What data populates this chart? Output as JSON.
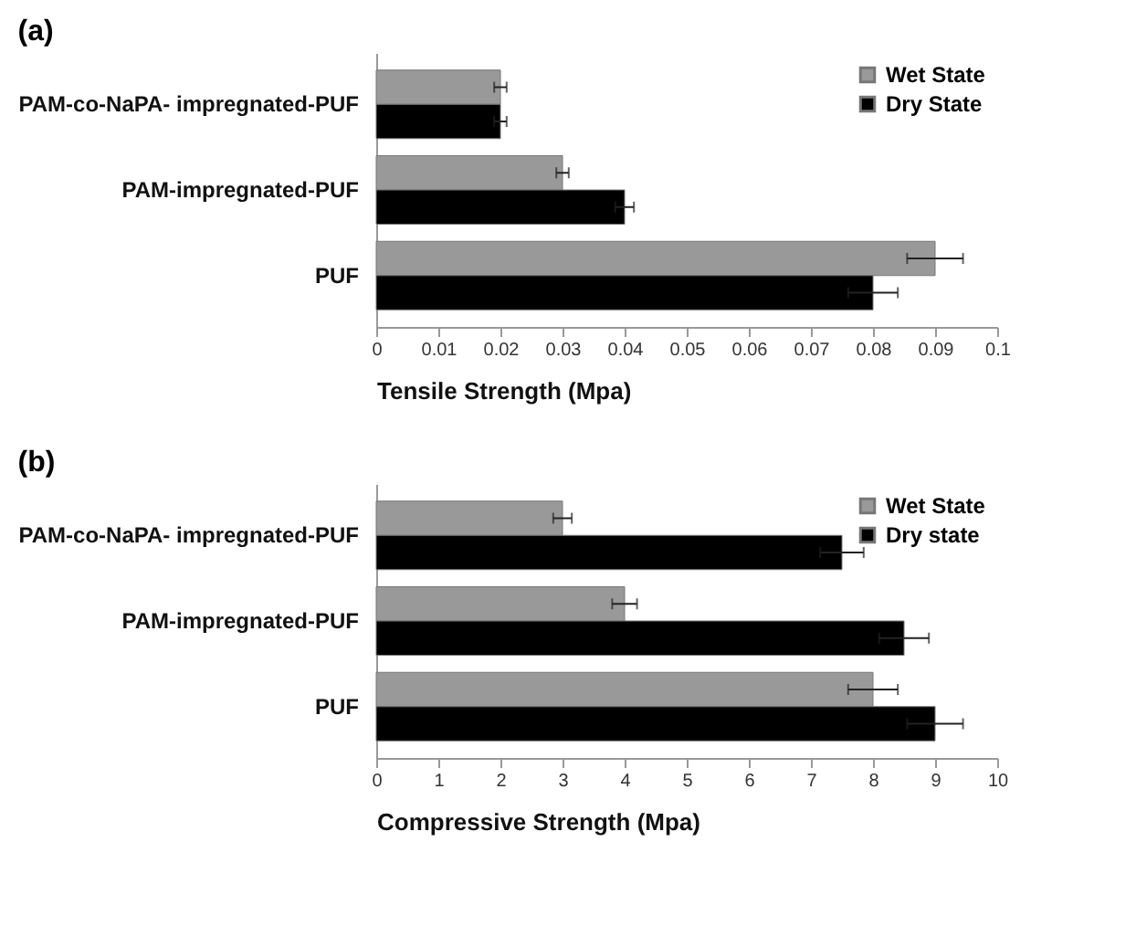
{
  "chart_data": [
    {
      "type": "bar",
      "orientation": "horizontal",
      "title": "(a)",
      "xlabel": "Tensile Strength (Mpa)",
      "categories": [
        "PAM-co-NaPA- impregnated-PUF",
        "PAM-impregnated-PUF",
        "PUF"
      ],
      "series": [
        {
          "name": "Wet State",
          "color": "#999999",
          "values": [
            0.02,
            0.03,
            0.09
          ],
          "errors": [
            0.001,
            0.001,
            0.0045
          ]
        },
        {
          "name": "Dry State",
          "color": "#000000",
          "values": [
            0.02,
            0.04,
            0.08
          ],
          "errors": [
            0.001,
            0.0015,
            0.004
          ]
        }
      ],
      "xlim": [
        0,
        0.1
      ],
      "xticks": [
        0,
        0.01,
        0.02,
        0.03,
        0.04,
        0.05,
        0.06,
        0.07,
        0.08,
        0.09,
        0.1
      ],
      "legend": "top right",
      "grid": false
    },
    {
      "type": "bar",
      "orientation": "horizontal",
      "title": "(b)",
      "xlabel": "Compressive Strength (Mpa)",
      "categories": [
        "PAM-co-NaPA- impregnated-PUF",
        "PAM-impregnated-PUF",
        "PUF"
      ],
      "series": [
        {
          "name": "Wet State",
          "color": "#999999",
          "values": [
            3,
            4,
            8
          ],
          "errors": [
            0.15,
            0.2,
            0.4
          ]
        },
        {
          "name": "Dry state",
          "color": "#000000",
          "values": [
            7.5,
            8.5,
            9
          ],
          "errors": [
            0.35,
            0.4,
            0.45
          ]
        }
      ],
      "xlim": [
        0,
        10
      ],
      "xticks": [
        0,
        1,
        2,
        3,
        4,
        5,
        6,
        7,
        8,
        9,
        10
      ],
      "legend": "top right",
      "grid": false
    }
  ]
}
